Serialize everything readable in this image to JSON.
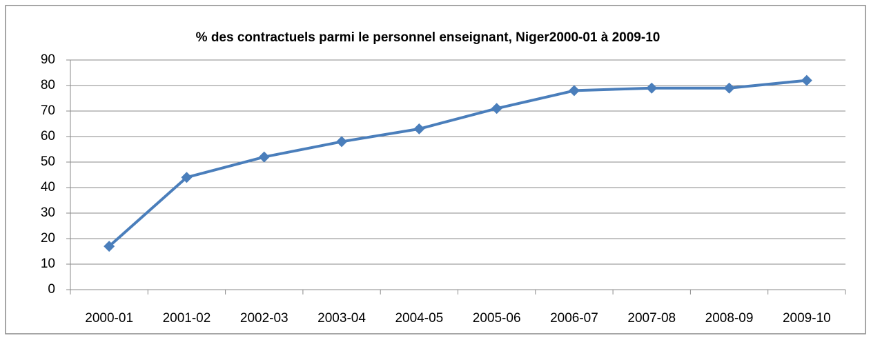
{
  "chart_data": {
    "type": "line",
    "title": "% des contractuels parmi le personnel enseignant, Niger2000-01 à 2009-10",
    "categories": [
      "2000-01",
      "2001-02",
      "2002-03",
      "2003-04",
      "2004-05",
      "2005-06",
      "2006-07",
      "2007-08",
      "2008-09",
      "2009-10"
    ],
    "values": [
      17,
      44,
      52,
      58,
      63,
      71,
      78,
      79,
      79,
      82
    ],
    "color": "#4a7ebb",
    "ylim": [
      0,
      90
    ],
    "yticks": [
      0,
      10,
      20,
      30,
      40,
      50,
      60,
      70,
      80,
      90
    ],
    "grid": true
  }
}
